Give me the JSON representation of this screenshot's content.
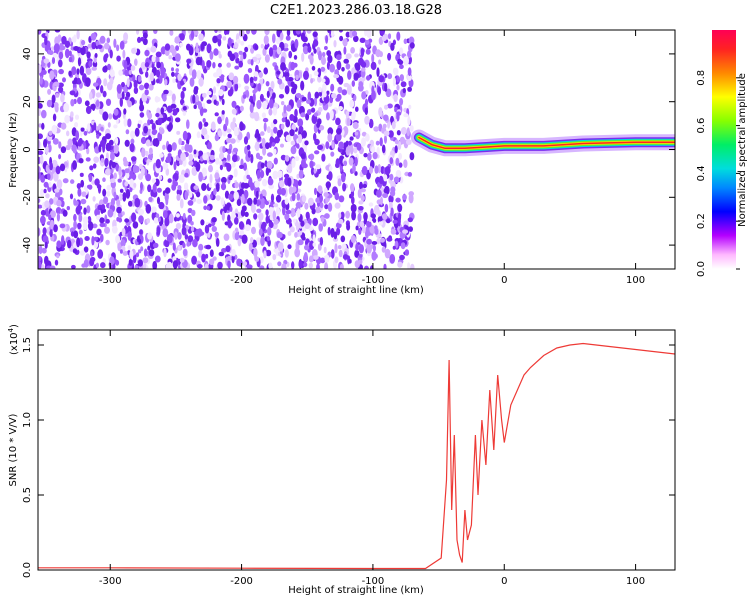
{
  "title": "C2E1.2023.286.03.18.G28",
  "colors": {
    "spectral_point": "#7a2cf0",
    "snr_line": "#ee3a36",
    "frame": "#000000"
  },
  "chart_data": [
    {
      "type": "heatmap",
      "name": "spectrogram",
      "xlabel": "Height of straight line (km)",
      "ylabel": "Frequency (Hz)",
      "xlim": [
        -355,
        130
      ],
      "ylim": [
        -50,
        50
      ],
      "xticks": [
        -300,
        -200,
        -100,
        0,
        100
      ],
      "xtick_labels": [
        "-300",
        "-200",
        "-100",
        "0",
        "100"
      ],
      "yticks": [
        -40,
        -20,
        0,
        20,
        40
      ],
      "ytick_labels": [
        "-40",
        "-20",
        "0",
        "20",
        "40"
      ],
      "noise_region_x": [
        -355,
        -70
      ],
      "signal_track": [
        {
          "x": -65,
          "f": 5
        },
        {
          "x": -55,
          "f": 2
        },
        {
          "x": -45,
          "f": 0.5
        },
        {
          "x": -30,
          "f": 0.5
        },
        {
          "x": -15,
          "f": 1
        },
        {
          "x": 0,
          "f": 1.5
        },
        {
          "x": 30,
          "f": 1.5
        },
        {
          "x": 60,
          "f": 2.5
        },
        {
          "x": 100,
          "f": 3
        },
        {
          "x": 130,
          "f": 3
        }
      ],
      "colorbar": {
        "label": "Normalized spectral amplitude",
        "range": [
          0,
          1
        ],
        "ticks": [
          0.0,
          0.2,
          0.4,
          0.6,
          0.8
        ],
        "tick_labels": [
          "0.0",
          "0.2",
          "0.4",
          "0.6",
          "0.8"
        ]
      }
    },
    {
      "type": "line",
      "name": "snr",
      "xlabel": "Height of straight line (km)",
      "ylabel": "SNR (10 * V/V)",
      "scale_label": "(x10",
      "scale_exponent": "4",
      "scale_close": ")",
      "xlim": [
        -355,
        130
      ],
      "ylim": [
        0,
        1.6
      ],
      "xticks": [
        -300,
        -200,
        -100,
        0,
        100
      ],
      "xtick_labels": [
        "-300",
        "-200",
        "-100",
        "0",
        "100"
      ],
      "yticks": [
        0.0,
        0.5,
        1.0,
        1.5
      ],
      "ytick_labels": [
        "0.0",
        "0.5",
        "1.0",
        "1.5"
      ],
      "series": [
        {
          "color": "#ee3a36",
          "x": [
            -355,
            -300,
            -200,
            -100,
            -60,
            -48,
            -44,
            -42,
            -40,
            -38,
            -36,
            -34,
            -32,
            -30,
            -28,
            -25,
            -22,
            -20,
            -17,
            -14,
            -11,
            -8,
            -5,
            -2,
            0,
            5,
            10,
            15,
            20,
            30,
            40,
            50,
            60,
            70,
            80,
            90,
            100,
            110,
            120,
            130
          ],
          "y": [
            0.015,
            0.015,
            0.012,
            0.01,
            0.01,
            0.08,
            0.6,
            1.4,
            0.4,
            0.9,
            0.2,
            0.1,
            0.05,
            0.4,
            0.2,
            0.3,
            0.9,
            0.5,
            1.0,
            0.7,
            1.2,
            0.8,
            1.3,
            1.0,
            0.85,
            1.1,
            1.2,
            1.3,
            1.35,
            1.43,
            1.48,
            1.5,
            1.51,
            1.5,
            1.49,
            1.48,
            1.47,
            1.46,
            1.45,
            1.44
          ]
        }
      ]
    }
  ]
}
